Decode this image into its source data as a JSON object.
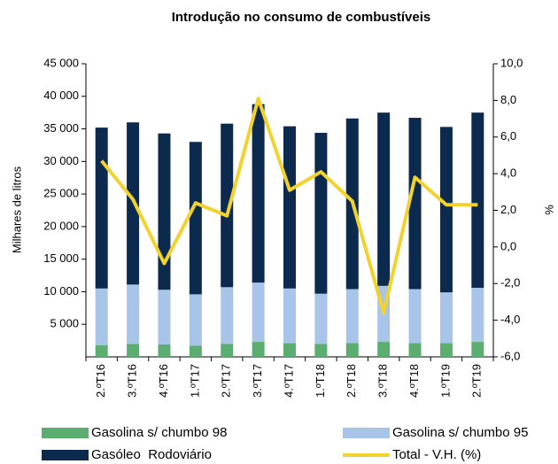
{
  "chart_data": {
    "type": "bar",
    "title": "Introdução no consumo de combustíveis",
    "y_label": "Milhares de litros",
    "y2_label": "%",
    "categories": [
      "2.ºT16",
      "3.ºT16",
      "4.ºT16",
      "1.ºT17",
      "2.ºT17",
      "3.ºT17",
      "4.ºT17",
      "1.ºT18",
      "2.ºT18",
      "3.ºT18",
      "4.ºT18",
      "1.ºT19",
      "2.ºT19"
    ],
    "series": [
      {
        "name": "Gasolina s/ chumbo 98",
        "color": "#5cae70",
        "values": [
          1800,
          2000,
          1900,
          1700,
          2000,
          2300,
          2100,
          2000,
          2100,
          2300,
          2100,
          2100,
          2300
        ]
      },
      {
        "name": "Gasolina s/ chumbo 95",
        "color": "#a8c4e8",
        "values": [
          8700,
          9100,
          8400,
          7900,
          8700,
          9100,
          8400,
          7700,
          8300,
          8600,
          8300,
          7800,
          8300
        ]
      },
      {
        "name": "Gasóleo  Rodoviário",
        "color": "#0c2a4e",
        "values": [
          24700,
          24900,
          24000,
          23400,
          25100,
          27400,
          24900,
          24700,
          26200,
          26600,
          26300,
          25400,
          26900
        ]
      },
      {
        "name": "Total - V.H. (%)",
        "color": "#f2d22c",
        "axis": "y2",
        "type": "line",
        "values": [
          4.7,
          2.6,
          -0.9,
          2.4,
          1.7,
          8.1,
          3.1,
          4.1,
          2.5,
          -3.6,
          3.8,
          2.3,
          2.3
        ]
      }
    ],
    "ylim": [
      0,
      45000
    ],
    "yticks": [
      {
        "value": 5000,
        "label": "5 000"
      },
      {
        "value": 10000,
        "label": "10 000"
      },
      {
        "value": 15000,
        "label": "15 000"
      },
      {
        "value": 20000,
        "label": "20 000"
      },
      {
        "value": 25000,
        "label": "25 000"
      },
      {
        "value": 30000,
        "label": "30 000"
      },
      {
        "value": 35000,
        "label": "35 000"
      },
      {
        "value": 40000,
        "label": "40 000"
      },
      {
        "value": 45000,
        "label": "45 000"
      }
    ],
    "y2lim": [
      -6,
      10
    ],
    "y2ticks": [
      {
        "value": -6,
        "label": "-6,0"
      },
      {
        "value": -4,
        "label": "-4,0"
      },
      {
        "value": -2,
        "label": "-2,0"
      },
      {
        "value": 0,
        "label": "0,0"
      },
      {
        "value": 2,
        "label": "2,0"
      },
      {
        "value": 4,
        "label": "4,0"
      },
      {
        "value": 6,
        "label": "6,0"
      },
      {
        "value": 8,
        "label": "8,0"
      },
      {
        "value": 10,
        "label": "10,0"
      }
    ],
    "legend": "bottom"
  }
}
